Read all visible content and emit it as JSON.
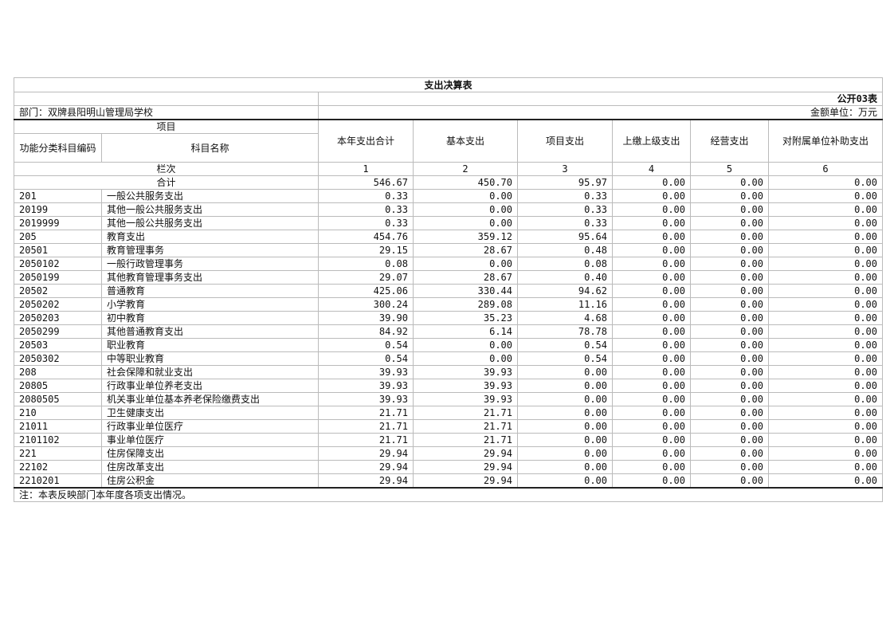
{
  "title": "支出决算表",
  "table_no": "公开03表",
  "department": "部门：双牌县阳明山管理局学校",
  "unit": "金额单位：万元",
  "headers": {
    "project": "项目",
    "code": "功能分类科目编码",
    "name": "科目名称",
    "cols": [
      "本年支出合计",
      "基本支出",
      "项目支出",
      "上缴上级支出",
      "经营支出",
      "对附属单位补助支出"
    ]
  },
  "index_row": {
    "label": "栏次",
    "nums": [
      "1",
      "2",
      "3",
      "4",
      "5",
      "6"
    ]
  },
  "total": {
    "label": "合计",
    "values": [
      "546.67",
      "450.70",
      "95.97",
      "0.00",
      "0.00",
      "0.00"
    ]
  },
  "rows": [
    {
      "code": "201",
      "name": "一般公共服务支出",
      "values": [
        "0.33",
        "0.00",
        "0.33",
        "0.00",
        "0.00",
        "0.00"
      ]
    },
    {
      "code": "20199",
      "name": "其他一般公共服务支出",
      "values": [
        "0.33",
        "0.00",
        "0.33",
        "0.00",
        "0.00",
        "0.00"
      ]
    },
    {
      "code": "2019999",
      "name": "其他一般公共服务支出",
      "values": [
        "0.33",
        "0.00",
        "0.33",
        "0.00",
        "0.00",
        "0.00"
      ]
    },
    {
      "code": "205",
      "name": "教育支出",
      "values": [
        "454.76",
        "359.12",
        "95.64",
        "0.00",
        "0.00",
        "0.00"
      ]
    },
    {
      "code": "20501",
      "name": "教育管理事务",
      "values": [
        "29.15",
        "28.67",
        "0.48",
        "0.00",
        "0.00",
        "0.00"
      ]
    },
    {
      "code": "2050102",
      "name": "一般行政管理事务",
      "values": [
        "0.08",
        "0.00",
        "0.08",
        "0.00",
        "0.00",
        "0.00"
      ]
    },
    {
      "code": "2050199",
      "name": "其他教育管理事务支出",
      "values": [
        "29.07",
        "28.67",
        "0.40",
        "0.00",
        "0.00",
        "0.00"
      ]
    },
    {
      "code": "20502",
      "name": "普通教育",
      "values": [
        "425.06",
        "330.44",
        "94.62",
        "0.00",
        "0.00",
        "0.00"
      ]
    },
    {
      "code": "2050202",
      "name": "小学教育",
      "values": [
        "300.24",
        "289.08",
        "11.16",
        "0.00",
        "0.00",
        "0.00"
      ]
    },
    {
      "code": "2050203",
      "name": "初中教育",
      "values": [
        "39.90",
        "35.23",
        "4.68",
        "0.00",
        "0.00",
        "0.00"
      ]
    },
    {
      "code": "2050299",
      "name": "其他普通教育支出",
      "values": [
        "84.92",
        "6.14",
        "78.78",
        "0.00",
        "0.00",
        "0.00"
      ]
    },
    {
      "code": "20503",
      "name": "职业教育",
      "values": [
        "0.54",
        "0.00",
        "0.54",
        "0.00",
        "0.00",
        "0.00"
      ]
    },
    {
      "code": "2050302",
      "name": "中等职业教育",
      "values": [
        "0.54",
        "0.00",
        "0.54",
        "0.00",
        "0.00",
        "0.00"
      ]
    },
    {
      "code": "208",
      "name": "社会保障和就业支出",
      "values": [
        "39.93",
        "39.93",
        "0.00",
        "0.00",
        "0.00",
        "0.00"
      ]
    },
    {
      "code": "20805",
      "name": "行政事业单位养老支出",
      "values": [
        "39.93",
        "39.93",
        "0.00",
        "0.00",
        "0.00",
        "0.00"
      ]
    },
    {
      "code": "2080505",
      "name": "机关事业单位基本养老保险缴费支出",
      "values": [
        "39.93",
        "39.93",
        "0.00",
        "0.00",
        "0.00",
        "0.00"
      ]
    },
    {
      "code": "210",
      "name": "卫生健康支出",
      "values": [
        "21.71",
        "21.71",
        "0.00",
        "0.00",
        "0.00",
        "0.00"
      ]
    },
    {
      "code": "21011",
      "name": "行政事业单位医疗",
      "values": [
        "21.71",
        "21.71",
        "0.00",
        "0.00",
        "0.00",
        "0.00"
      ]
    },
    {
      "code": "2101102",
      "name": "事业单位医疗",
      "values": [
        "21.71",
        "21.71",
        "0.00",
        "0.00",
        "0.00",
        "0.00"
      ]
    },
    {
      "code": "221",
      "name": "住房保障支出",
      "values": [
        "29.94",
        "29.94",
        "0.00",
        "0.00",
        "0.00",
        "0.00"
      ]
    },
    {
      "code": "22102",
      "name": "住房改革支出",
      "values": [
        "29.94",
        "29.94",
        "0.00",
        "0.00",
        "0.00",
        "0.00"
      ]
    },
    {
      "code": "2210201",
      "name": "住房公积金",
      "values": [
        "29.94",
        "29.94",
        "0.00",
        "0.00",
        "0.00",
        "0.00"
      ]
    }
  ],
  "note": "注：本表反映部门本年度各项支出情况。"
}
